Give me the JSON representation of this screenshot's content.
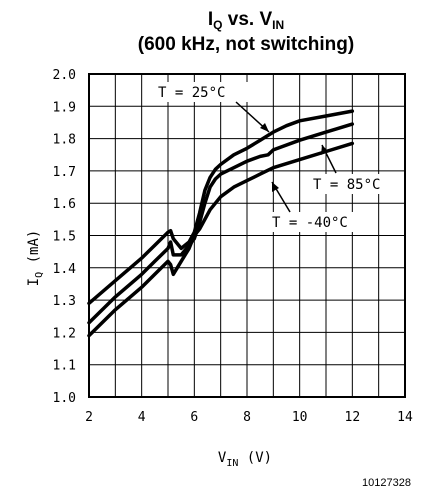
{
  "chart_data": {
    "type": "line",
    "title": {
      "main": "I",
      "main_sub": "Q",
      "mid": " vs. V",
      "mid_sub": "IN"
    },
    "subtitle": "(600 kHz, not switching)",
    "xlabel": {
      "main": "V",
      "sub": "IN",
      "rest": " (V)"
    },
    "ylabel": {
      "main": "I",
      "sub": "Q",
      "rest": " (mA)"
    },
    "xlim": [
      2,
      14
    ],
    "ylim": [
      1.0,
      2.0
    ],
    "xticks": [
      "2",
      "4",
      "6",
      "8",
      "10",
      "12",
      "14"
    ],
    "yticks": [
      "1.0",
      "1.1",
      "1.2",
      "1.3",
      "1.4",
      "1.5",
      "1.6",
      "1.7",
      "1.8",
      "1.9",
      "2.0"
    ],
    "grid": true,
    "series": [
      {
        "name": "T = 25°C",
        "x": [
          2,
          3,
          4,
          4.5,
          5,
          5.1,
          5.2,
          5.5,
          5.8,
          6,
          6.2,
          6.4,
          6.6,
          6.8,
          7,
          7.5,
          8,
          8.5,
          9,
          9.5,
          10,
          11,
          12
        ],
        "y": [
          1.29,
          1.36,
          1.43,
          1.47,
          1.51,
          1.515,
          1.49,
          1.46,
          1.48,
          1.51,
          1.57,
          1.64,
          1.68,
          1.705,
          1.72,
          1.75,
          1.77,
          1.795,
          1.82,
          1.84,
          1.855,
          1.87,
          1.885
        ]
      },
      {
        "name": "T = 85°C",
        "x": [
          2,
          3,
          4,
          4.5,
          5,
          5.1,
          5.2,
          5.5,
          5.8,
          6,
          6.2,
          6.4,
          6.6,
          6.8,
          7,
          7.5,
          8,
          8.5,
          8.8,
          9,
          10,
          11,
          12
        ],
        "y": [
          1.23,
          1.31,
          1.38,
          1.42,
          1.46,
          1.48,
          1.44,
          1.44,
          1.47,
          1.49,
          1.54,
          1.6,
          1.65,
          1.675,
          1.69,
          1.71,
          1.73,
          1.745,
          1.75,
          1.765,
          1.795,
          1.82,
          1.845
        ]
      },
      {
        "name": "T = -40°C",
        "x": [
          2,
          3,
          4,
          4.5,
          5,
          5.1,
          5.2,
          5.5,
          5.8,
          6,
          6.2,
          6.4,
          6.6,
          6.8,
          7,
          7.5,
          8,
          8.5,
          9,
          10,
          11,
          12
        ],
        "y": [
          1.19,
          1.27,
          1.34,
          1.38,
          1.42,
          1.41,
          1.38,
          1.42,
          1.46,
          1.5,
          1.52,
          1.55,
          1.58,
          1.6,
          1.62,
          1.65,
          1.67,
          1.69,
          1.71,
          1.735,
          1.76,
          1.785
        ]
      }
    ],
    "annotations": [
      "T = 25°C",
      "T = 85°C",
      "T = -40°C"
    ],
    "figure_number": "10127328"
  }
}
